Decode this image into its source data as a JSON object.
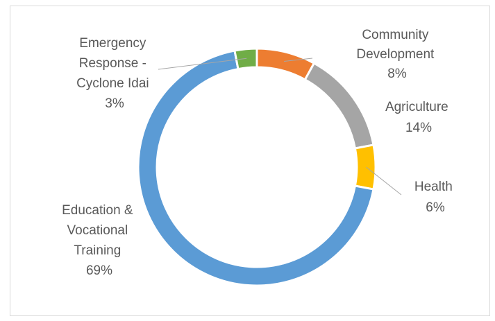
{
  "chart_data": {
    "type": "pie",
    "style": "donut",
    "title": "",
    "legend": "none",
    "slices": [
      {
        "label_lines": [
          "Community",
          "Development",
          "8%"
        ],
        "value": 8,
        "color": "#ed7d31"
      },
      {
        "label_lines": [
          "Agriculture",
          "14%"
        ],
        "value": 14,
        "color": "#a5a5a5"
      },
      {
        "label_lines": [
          "Health",
          "6%"
        ],
        "value": 6,
        "color": "#ffc000"
      },
      {
        "label_lines": [
          "Education &",
          "Vocational",
          "Training",
          "69%"
        ],
        "value": 69,
        "color": "#5b9bd5"
      },
      {
        "label_lines": [
          "Emergency",
          "Response -",
          "Cyclone Idai",
          "3%"
        ],
        "value": 3,
        "color": "#70ad47"
      }
    ]
  }
}
